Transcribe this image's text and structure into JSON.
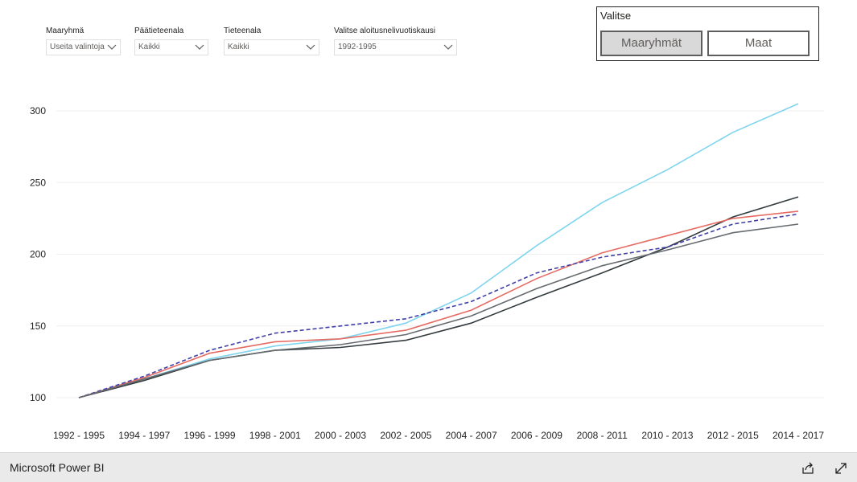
{
  "filters": [
    {
      "label": "Maaryhmä",
      "value": "Useita valintoja"
    },
    {
      "label": "Päätieteenala",
      "value": "Kaikki"
    },
    {
      "label": "Tieteenala",
      "value": "Kaikki"
    },
    {
      "label": "Valitse aloitusnelivuotiskausi",
      "value": "1992-1995"
    }
  ],
  "valitse": {
    "title": "Valitse",
    "buttons": [
      "Maaryhmät",
      "Maat"
    ],
    "active": "Maaryhmät"
  },
  "footer": {
    "brand": "Microsoft Power BI",
    "share_icon": "share-icon",
    "fullscreen_icon": "expand-icon"
  },
  "chart_data": {
    "type": "line",
    "categories": [
      "1992 - 1995",
      "1994 - 1997",
      "1996 - 1999",
      "1998 - 2001",
      "2000 - 2003",
      "2002 - 2005",
      "2004 - 2007",
      "2006 - 2009",
      "2008 - 2011",
      "2010 - 2013",
      "2012 - 2015",
      "2014 - 2017"
    ],
    "ylim": [
      100,
      305
    ],
    "yticks": [
      100,
      150,
      200,
      250,
      300
    ],
    "grid": true,
    "legend": "none",
    "series": [
      {
        "color": "#7fd4ee",
        "dashed": false,
        "values": [
          100,
          113,
          127,
          136,
          141,
          152,
          173,
          206,
          236,
          259,
          285,
          305
        ]
      },
      {
        "color": "#333b3f",
        "dashed": false,
        "values": [
          100,
          112,
          126,
          133,
          135,
          140,
          152,
          170,
          187,
          205,
          226,
          240
        ]
      },
      {
        "color": "#e66c63",
        "dashed": false,
        "values": [
          100,
          114,
          131,
          139,
          141,
          147,
          161,
          183,
          201,
          213,
          225,
          230
        ]
      },
      {
        "color": "#4040a8",
        "dashed": true,
        "values": [
          100,
          115,
          133,
          145,
          150,
          155,
          167,
          187,
          198,
          205,
          221,
          228
        ]
      },
      {
        "color": "#666b6f",
        "dashed": false,
        "values": [
          100,
          113,
          126,
          133,
          137,
          144,
          157,
          176,
          192,
          203,
          215,
          221
        ]
      }
    ]
  }
}
